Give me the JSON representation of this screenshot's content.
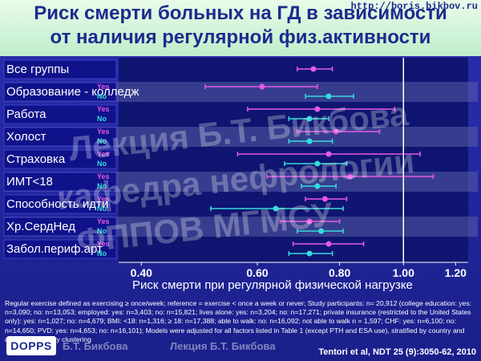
{
  "slide": {
    "title_line1": "Риск смерти больных на ГД в зависимости",
    "title_line2": "от наличия регулярной физ.активности",
    "url": "http://boris.bikbov.ru",
    "watermark_line1": "Лекция Б.Т. Бикбова",
    "watermark_line2": "кафедра нефрологии",
    "watermark_line3": "ФППОВ МГМСУ",
    "watermark_bottom1": "Б.Т. Бикбова",
    "watermark_bottom2": "Лекция Б.Т. Бикбова",
    "footnote": "Regular exercise defined as exercising ≥ once/week; reference = exercise < once a week or never; Study participants: n= 20,912 (college education: yes: n=3,090; no: n=13,053; employed: yes: n=3,403; no: n=15,821; lives alone: yes: n=3,204; no: n=17,271; private insurance (restricted to the United States only): yes: n=1,027; no: n=4,679; BMI: <18: n=1,316; ≥ 18: n=17,388; able to walk: no: n=16,092; not able to walk n = 1,597; CHF: yes: n=6,100; no: n=14,650; PVD: yes: n=4,653; no: n=16,101); Models were adjusted for all factors listed in Table 1 (except PTH and ESA use), stratified by country and account for facility clustering",
    "logo": "DOPPS",
    "citation": "Tentori et al, NDT 25 (9):3050-62, 2010"
  },
  "chart_data": {
    "type": "forest",
    "title": "Риск смерти больных на ГД в зависимости от наличия регулярной физ.активности",
    "xlabel": "Риск смерти при регулярной физической нагрузке",
    "xscale": "log",
    "xlim": [
      0.38,
      1.24
    ],
    "xticks": [
      0.4,
      0.6,
      0.8,
      1.0,
      1.2
    ],
    "xtick_labels": [
      "0.40",
      "0.60",
      "0.80",
      "1.00",
      "1.20"
    ],
    "reference_line": 1.0,
    "series_colors": {
      "Yes": "#e659e6",
      "No": "#35dcdc",
      "All": "#e659e6"
    },
    "groups": [
      {
        "label": "Все группы",
        "rows": [
          {
            "sub": "",
            "est": 0.73,
            "lo": 0.69,
            "hi": 0.78
          }
        ]
      },
      {
        "label": "Образование - колледж",
        "rows": [
          {
            "sub": "Yes",
            "est": 0.61,
            "lo": 0.5,
            "hi": 0.74
          },
          {
            "sub": "No",
            "est": 0.77,
            "lo": 0.71,
            "hi": 0.84
          }
        ]
      },
      {
        "label": "Работа",
        "rows": [
          {
            "sub": "Yes",
            "est": 0.74,
            "lo": 0.58,
            "hi": 0.97
          },
          {
            "sub": "No",
            "est": 0.72,
            "lo": 0.67,
            "hi": 0.77
          }
        ]
      },
      {
        "label": "Холост",
        "rows": [
          {
            "sub": "Yes",
            "est": 0.79,
            "lo": 0.69,
            "hi": 0.92
          },
          {
            "sub": "No",
            "est": 0.72,
            "lo": 0.67,
            "hi": 0.78
          }
        ]
      },
      {
        "label": "Страховка",
        "rows": [
          {
            "sub": "Yes",
            "est": 0.77,
            "lo": 0.56,
            "hi": 1.06
          },
          {
            "sub": "No",
            "est": 0.74,
            "lo": 0.66,
            "hi": 0.82
          }
        ]
      },
      {
        "label": "ИМТ<18",
        "rows": [
          {
            "sub": "Yes",
            "est": 0.83,
            "lo": 0.62,
            "hi": 1.11
          },
          {
            "sub": "No",
            "est": 0.74,
            "lo": 0.7,
            "hi": 0.79
          }
        ]
      },
      {
        "label": "Способность идти",
        "rows": [
          {
            "sub": "Yes",
            "est": 0.76,
            "lo": 0.71,
            "hi": 0.82
          },
          {
            "sub": "No",
            "est": 0.64,
            "lo": 0.51,
            "hi": 0.81
          }
        ]
      },
      {
        "label": "Хр.СердНед",
        "rows": [
          {
            "sub": "Yes",
            "est": 0.72,
            "lo": 0.65,
            "hi": 0.8
          },
          {
            "sub": "No",
            "est": 0.75,
            "lo": 0.69,
            "hi": 0.81
          }
        ]
      },
      {
        "label": "Забол.периф.арт",
        "rows": [
          {
            "sub": "Yes",
            "est": 0.77,
            "lo": 0.68,
            "hi": 0.87
          },
          {
            "sub": "No",
            "est": 0.72,
            "lo": 0.67,
            "hi": 0.78
          }
        ]
      }
    ]
  }
}
